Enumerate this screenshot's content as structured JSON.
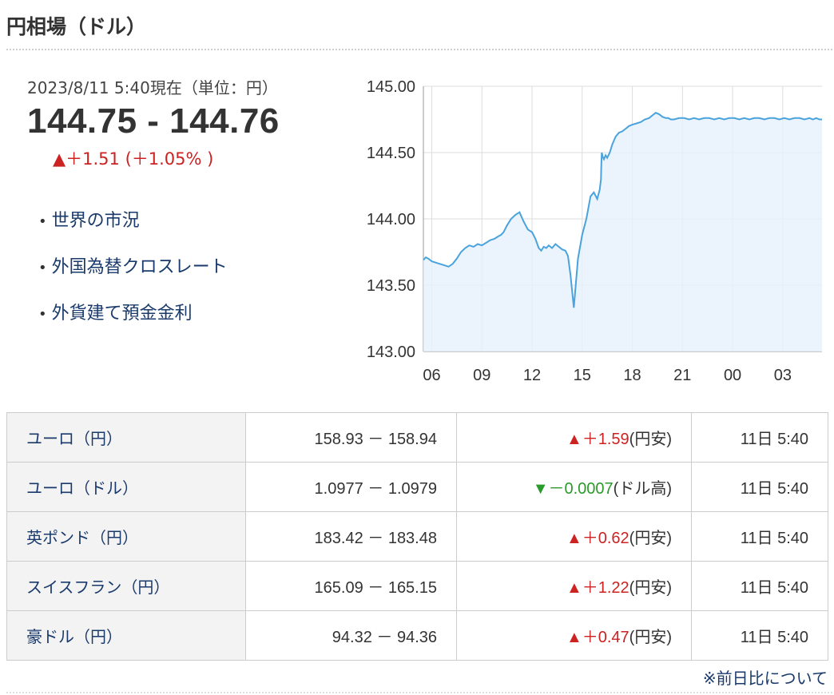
{
  "page_title": "円相場（ドル）",
  "rate": {
    "timestamp": "2023/8/11 5:40現在（単位：円）",
    "value": "144.75 - 144.76",
    "change": "▲＋1.51 (＋1.05% )"
  },
  "links": [
    {
      "label": "世界の市況"
    },
    {
      "label": "外国為替クロスレート"
    },
    {
      "label": "外貨建て預金金利"
    }
  ],
  "chart_data": {
    "type": "line",
    "title": "",
    "xlabel": "",
    "ylabel": "",
    "x_tick_labels": [
      "06",
      "09",
      "12",
      "15",
      "18",
      "21",
      "00",
      "03"
    ],
    "y_tick_labels": [
      "145.00",
      "144.50",
      "144.00",
      "143.50",
      "143.00"
    ],
    "ylim": [
      143.0,
      145.0
    ],
    "grid": true,
    "x": [
      0,
      0.3,
      0.6,
      1.0,
      1.5,
      2.0,
      2.5,
      3.0,
      3.5,
      4.0,
      4.5,
      5.0,
      5.5,
      6.0,
      6.5,
      7.0,
      7.5,
      8.0,
      8.5,
      9.0,
      9.3,
      9.6,
      10.0,
      10.5,
      11.0,
      11.5,
      12.0,
      12.5,
      13.0,
      13.4,
      13.8,
      14.1,
      14.4,
      14.7,
      15.0,
      15.4,
      15.8,
      16.2,
      16.6,
      17.0,
      17.3,
      17.6,
      18.0,
      18.5,
      19.0,
      19.5,
      20.0,
      20.4,
      20.8,
      21.1,
      21.25,
      21.3,
      21.35,
      21.45,
      21.6,
      21.8,
      22.0,
      22.3,
      22.6,
      23.0,
      23.4,
      23.8,
      24.2,
      24.6,
      25.0,
      25.5,
      26.0,
      26.5,
      27.0,
      27.4,
      27.8,
      28.2,
      28.6,
      29.0,
      29.3,
      29.6,
      30.0,
      30.6,
      31.2,
      31.8,
      32.4,
      33.0,
      33.6,
      34.2,
      34.8,
      35.4,
      36.0,
      36.6,
      37.2,
      37.8,
      38.4,
      39.0,
      39.6,
      40.2,
      40.8,
      41.4,
      42.0,
      42.6,
      43.2,
      43.8,
      44.4,
      45.0,
      45.6,
      46.2,
      46.6,
      47.0,
      47.4,
      47.7
    ],
    "series": [
      {
        "values": [
          143.69,
          143.71,
          143.7,
          143.68,
          143.67,
          143.66,
          143.65,
          143.64,
          143.66,
          143.7,
          143.75,
          143.78,
          143.8,
          143.79,
          143.81,
          143.8,
          143.82,
          143.84,
          143.85,
          143.87,
          143.88,
          143.9,
          143.95,
          144.0,
          144.03,
          144.05,
          143.98,
          143.92,
          143.9,
          143.85,
          143.78,
          143.76,
          143.79,
          143.78,
          143.8,
          143.78,
          143.81,
          143.79,
          143.77,
          143.76,
          143.72,
          143.58,
          143.33,
          143.7,
          143.88,
          144.0,
          144.17,
          144.2,
          144.15,
          144.22,
          144.3,
          144.42,
          144.5,
          144.47,
          144.45,
          144.48,
          144.46,
          144.5,
          144.56,
          144.62,
          144.65,
          144.66,
          144.68,
          144.7,
          144.71,
          144.72,
          144.73,
          144.75,
          144.76,
          144.78,
          144.8,
          144.79,
          144.77,
          144.76,
          144.76,
          144.75,
          144.75,
          144.76,
          144.76,
          144.75,
          144.76,
          144.75,
          144.76,
          144.76,
          144.75,
          144.76,
          144.75,
          144.76,
          144.76,
          144.75,
          144.76,
          144.75,
          144.76,
          144.76,
          144.75,
          144.76,
          144.76,
          144.75,
          144.76,
          144.75,
          144.76,
          144.76,
          144.75,
          144.76,
          144.75,
          144.76,
          144.75,
          144.75
        ]
      }
    ],
    "line_color": "#4aa3dc",
    "fill_color": "#e6f1fb"
  },
  "table": {
    "rows": [
      {
        "name": "ユーロ（円）",
        "rate": "158.93 － 158.94",
        "arrow": "▲",
        "delta": "＋1.59",
        "suffix": "(円安)",
        "dir": "up",
        "time": "11日 5:40"
      },
      {
        "name": "ユーロ（ドル）",
        "rate": "1.0977 － 1.0979",
        "arrow": "▼",
        "delta": "－0.0007",
        "suffix": "(ドル高)",
        "dir": "down",
        "time": "11日 5:40"
      },
      {
        "name": "英ポンド（円）",
        "rate": "183.42 － 183.48",
        "arrow": "▲",
        "delta": "＋0.62",
        "suffix": "(円安)",
        "dir": "up",
        "time": "11日 5:40"
      },
      {
        "name": "スイスフラン（円）",
        "rate": "165.09 － 165.15",
        "arrow": "▲",
        "delta": "＋1.22",
        "suffix": "(円安)",
        "dir": "up",
        "time": "11日 5:40"
      },
      {
        "name": "豪ドル（円）",
        "rate": "94.32 － 94.36",
        "arrow": "▲",
        "delta": "＋0.47",
        "suffix": "(円安)",
        "dir": "up",
        "time": "11日 5:40"
      }
    ]
  },
  "footnote": "※前日比について",
  "colors": {
    "up": "#cc2222",
    "down": "#2a9a2a",
    "link": "#1a3a6b"
  }
}
